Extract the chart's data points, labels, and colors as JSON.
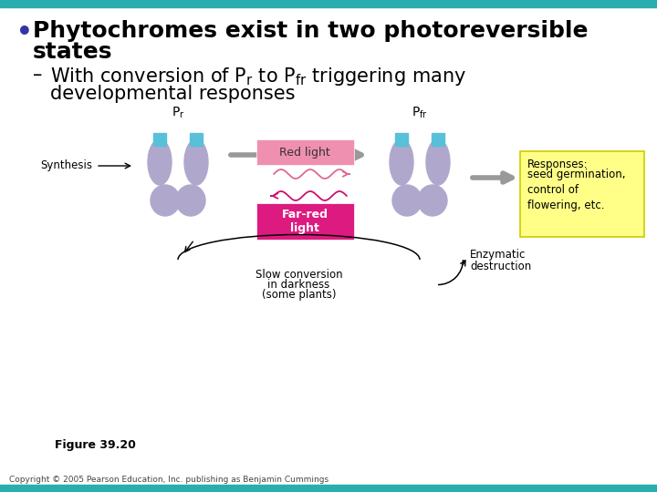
{
  "bg_color": "#ffffff",
  "top_bar_color": "#2aadad",
  "bottom_bar_color": "#2aadad",
  "bullet_text_line1": "Phytochromes exist in two photoreversible",
  "bullet_text_line2": "states",
  "sub_bullet_text2": "developmental responses",
  "figure_label": "Figure 39.20",
  "copyright_text": "Copyright © 2005 Pearson Education, Inc. publishing as Benjamin Cummings",
  "synthesis_label": "Synthesis",
  "slow_conv_line1": "Slow conversion",
  "slow_conv_line2": "in darkness",
  "slow_conv_line3": "(some plants)",
  "enzymatic_line1": "Enzymatic",
  "enzymatic_line2": "destruction",
  "responses_title": "Responses:",
  "responses_text": "seed germination,\ncontrol of\nflowering, etc.",
  "red_light_label": "Red light",
  "far_red_label": "Far-red\nlight",
  "phytochrome_body_color": "#b0a8cc",
  "phytochrome_highlight_color": "#c8c0dc",
  "phytochrome_receptor_color": "#58c0d8",
  "red_light_box_color": "#f090b0",
  "far_red_box_color": "#dd1a80",
  "responses_box_color": "#ffff88",
  "responses_box_border": "#cccc00",
  "arrow_gray": "#999999",
  "wave_color_red": "#e06890",
  "wave_color_farred": "#cc1070",
  "text_color": "#000000",
  "bullet_fontsize": 18,
  "sub_fontsize": 15,
  "diagram_fontsize": 8.5,
  "label_fontsize": 9
}
